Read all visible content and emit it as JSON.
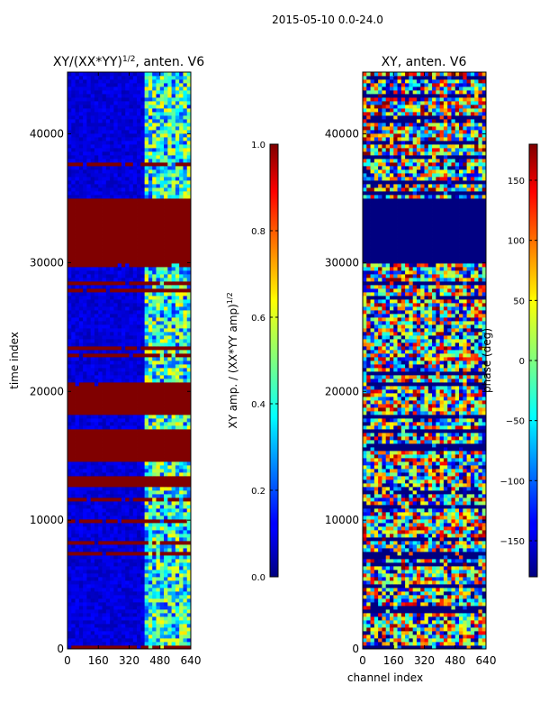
{
  "figure_title": "2015-05-10 0.0-24.0",
  "chart_data": [
    {
      "type": "heatmap",
      "title": "XY/(XX*YY)^1/2, anten. V6",
      "title_main": "XY/(XX*YY)",
      "title_sup": "1/2",
      "title_tail": ", anten. V6",
      "xlabel": "",
      "ylabel": "time index",
      "xlim": [
        0,
        640
      ],
      "ylim": [
        0,
        44800
      ],
      "x_ticks": [
        0,
        160,
        320,
        480,
        640
      ],
      "y_ticks": [
        0,
        10000,
        20000,
        30000,
        40000
      ],
      "colormap": "jet",
      "colorbar": {
        "label_main": "XY amp. / (XX*YY amp)",
        "label_sup": "1/2",
        "range": [
          0.0,
          1.0
        ],
        "ticks": [
          "0.0",
          "0.2",
          "0.4",
          "0.6",
          "0.8",
          "1.0"
        ]
      },
      "data_description": "normalized amplitude; mostly ~0.05 (dark blue), saturated 1.0 (dark red) bands at time ranges",
      "saturated_time_bands": [
        [
          30100,
          35000
        ],
        [
          14500,
          17000
        ],
        [
          12500,
          13500
        ],
        [
          18200,
          20500
        ]
      ],
      "bright_channel_range": [
        400,
        640
      ]
    },
    {
      "type": "heatmap",
      "title": "XY, anten. V6",
      "xlabel": "channel index",
      "ylabel": "",
      "xlim": [
        0,
        640
      ],
      "ylim": [
        0,
        44800
      ],
      "x_ticks": [
        0,
        160,
        320,
        480,
        640
      ],
      "y_ticks": [
        0,
        10000,
        20000,
        30000,
        40000
      ],
      "colormap": "jet",
      "colorbar": {
        "label": "phase (deg)",
        "range": [
          -180,
          180
        ],
        "ticks": [
          "150",
          "100",
          "50",
          "0",
          "−50",
          "−100",
          "−150"
        ]
      },
      "data_description": "XY phase in degrees, noisy across full range with horizontal striping; low-phase (~-180) block near 30100-35000"
    }
  ]
}
